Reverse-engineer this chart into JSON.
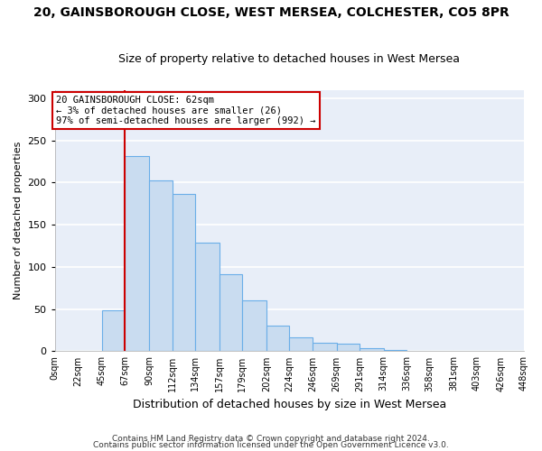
{
  "title": "20, GAINSBOROUGH CLOSE, WEST MERSEA, COLCHESTER, CO5 8PR",
  "subtitle": "Size of property relative to detached houses in West Mersea",
  "xlabel": "Distribution of detached houses by size in West Mersea",
  "ylabel": "Number of detached properties",
  "bar_color": "#c9dcf0",
  "bar_edge_color": "#6aaee8",
  "bin_edges": [
    0,
    22,
    45,
    67,
    90,
    112,
    134,
    157,
    179,
    202,
    224,
    246,
    269,
    291,
    314,
    336,
    358,
    381,
    403,
    426,
    448
  ],
  "bin_labels": [
    "0sqm",
    "22sqm",
    "45sqm",
    "67sqm",
    "90sqm",
    "112sqm",
    "134sqm",
    "157sqm",
    "179sqm",
    "202sqm",
    "224sqm",
    "246sqm",
    "269sqm",
    "291sqm",
    "314sqm",
    "336sqm",
    "358sqm",
    "381sqm",
    "403sqm",
    "426sqm",
    "448sqm"
  ],
  "counts": [
    0,
    0,
    49,
    231,
    203,
    187,
    129,
    91,
    60,
    30,
    16,
    10,
    9,
    4,
    1,
    0,
    0,
    0,
    0,
    0
  ],
  "ylim": [
    0,
    310
  ],
  "yticks": [
    0,
    50,
    100,
    150,
    200,
    250,
    300
  ],
  "vline_x": 67,
  "vline_color": "#cc0000",
  "annotation_title": "20 GAINSBOROUGH CLOSE: 62sqm",
  "annotation_line1": "← 3% of detached houses are smaller (26)",
  "annotation_line2": "97% of semi-detached houses are larger (992) →",
  "annotation_box_color": "#ffffff",
  "annotation_box_edge": "#cc0000",
  "footer1": "Contains HM Land Registry data © Crown copyright and database right 2024.",
  "footer2": "Contains public sector information licensed under the Open Government Licence v3.0.",
  "background_color": "#ffffff",
  "plot_bg_color": "#e8eef8",
  "grid_color": "#ffffff"
}
